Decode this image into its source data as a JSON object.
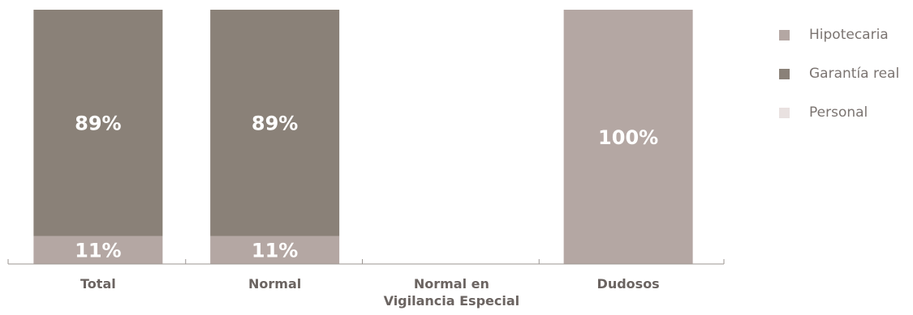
{
  "chart_data": {
    "type": "bar",
    "stacked": true,
    "percent_stacked": true,
    "categories": [
      {
        "lines": [
          "Total"
        ]
      },
      {
        "lines": [
          "Normal"
        ]
      },
      {
        "lines": [
          "Normal en",
          "Vigilancia Especial"
        ]
      },
      {
        "lines": [
          "Dudosos"
        ]
      }
    ],
    "series": [
      {
        "name": "Hipotecaria",
        "color": "#b4a7a3",
        "values": [
          11,
          11,
          0,
          100
        ],
        "labels": [
          "11%",
          "11%",
          "",
          "100%"
        ]
      },
      {
        "name": "Garantía real",
        "color": "#8a8178",
        "values": [
          89,
          89,
          0,
          0
        ],
        "labels": [
          "89%",
          "89%",
          "",
          ""
        ]
      },
      {
        "name": "Personal",
        "color": "#e9e1e0",
        "values": [
          0,
          0,
          0,
          0
        ],
        "labels": [
          "",
          "",
          "",
          ""
        ]
      }
    ],
    "ylim": [
      0,
      100
    ],
    "grid": false,
    "legend_position": "right",
    "axis_color": "#9b9592",
    "data_label_color": "#ffffff",
    "category_label_color": "#6b6461"
  }
}
